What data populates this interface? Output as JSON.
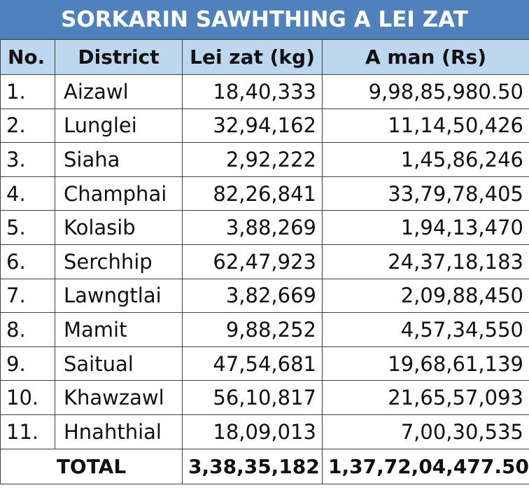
{
  "title": "SORKARIN SAWHTHING A LEI ZAT",
  "columns": {
    "no": "No.",
    "district": "District",
    "lei_zat": "Lei zat (kg)",
    "a_man": "A man (Rs)"
  },
  "rows": [
    {
      "no": "1.",
      "district": "Aizawl",
      "lei_zat": "18,40,333",
      "a_man": "9,98,85,980.50"
    },
    {
      "no": "2.",
      "district": "Lunglei",
      "lei_zat": "32,94,162",
      "a_man": "11,14,50,426"
    },
    {
      "no": "3.",
      "district": "Siaha",
      "lei_zat": "2,92,222",
      "a_man": "1,45,86,246"
    },
    {
      "no": "4.",
      "district": "Champhai",
      "lei_zat": "82,26,841",
      "a_man": "33,79,78,405"
    },
    {
      "no": "5.",
      "district": "Kolasib",
      "lei_zat": "3,88,269",
      "a_man": "1,94,13,470"
    },
    {
      "no": "6.",
      "district": "Serchhip",
      "lei_zat": "62,47,923",
      "a_man": "24,37,18,183"
    },
    {
      "no": "7.",
      "district": "Lawngtlai",
      "lei_zat": "3,82,669",
      "a_man": "2,09,88,450"
    },
    {
      "no": "8.",
      "district": "Mamit",
      "lei_zat": "9,88,252",
      "a_man": "4,57,34,550"
    },
    {
      "no": "9.",
      "district": "Saitual",
      "lei_zat": "47,54,681",
      "a_man": "19,68,61,139"
    },
    {
      "no": "10.",
      "district": "Khawzawl",
      "lei_zat": "56,10,817",
      "a_man": "21,65,57,093"
    },
    {
      "no": "11.",
      "district": "Hnahthial",
      "lei_zat": "18,09,013",
      "a_man": "7,00,30,535"
    }
  ],
  "total": {
    "label": "TOTAL",
    "lei_zat": "3,38,35,182",
    "a_man": "1,37,72,04,477.50"
  },
  "colors": {
    "title_bg": "#4f81bd",
    "header_bg": "#bdd7ee",
    "border": "#3f3f3f"
  }
}
